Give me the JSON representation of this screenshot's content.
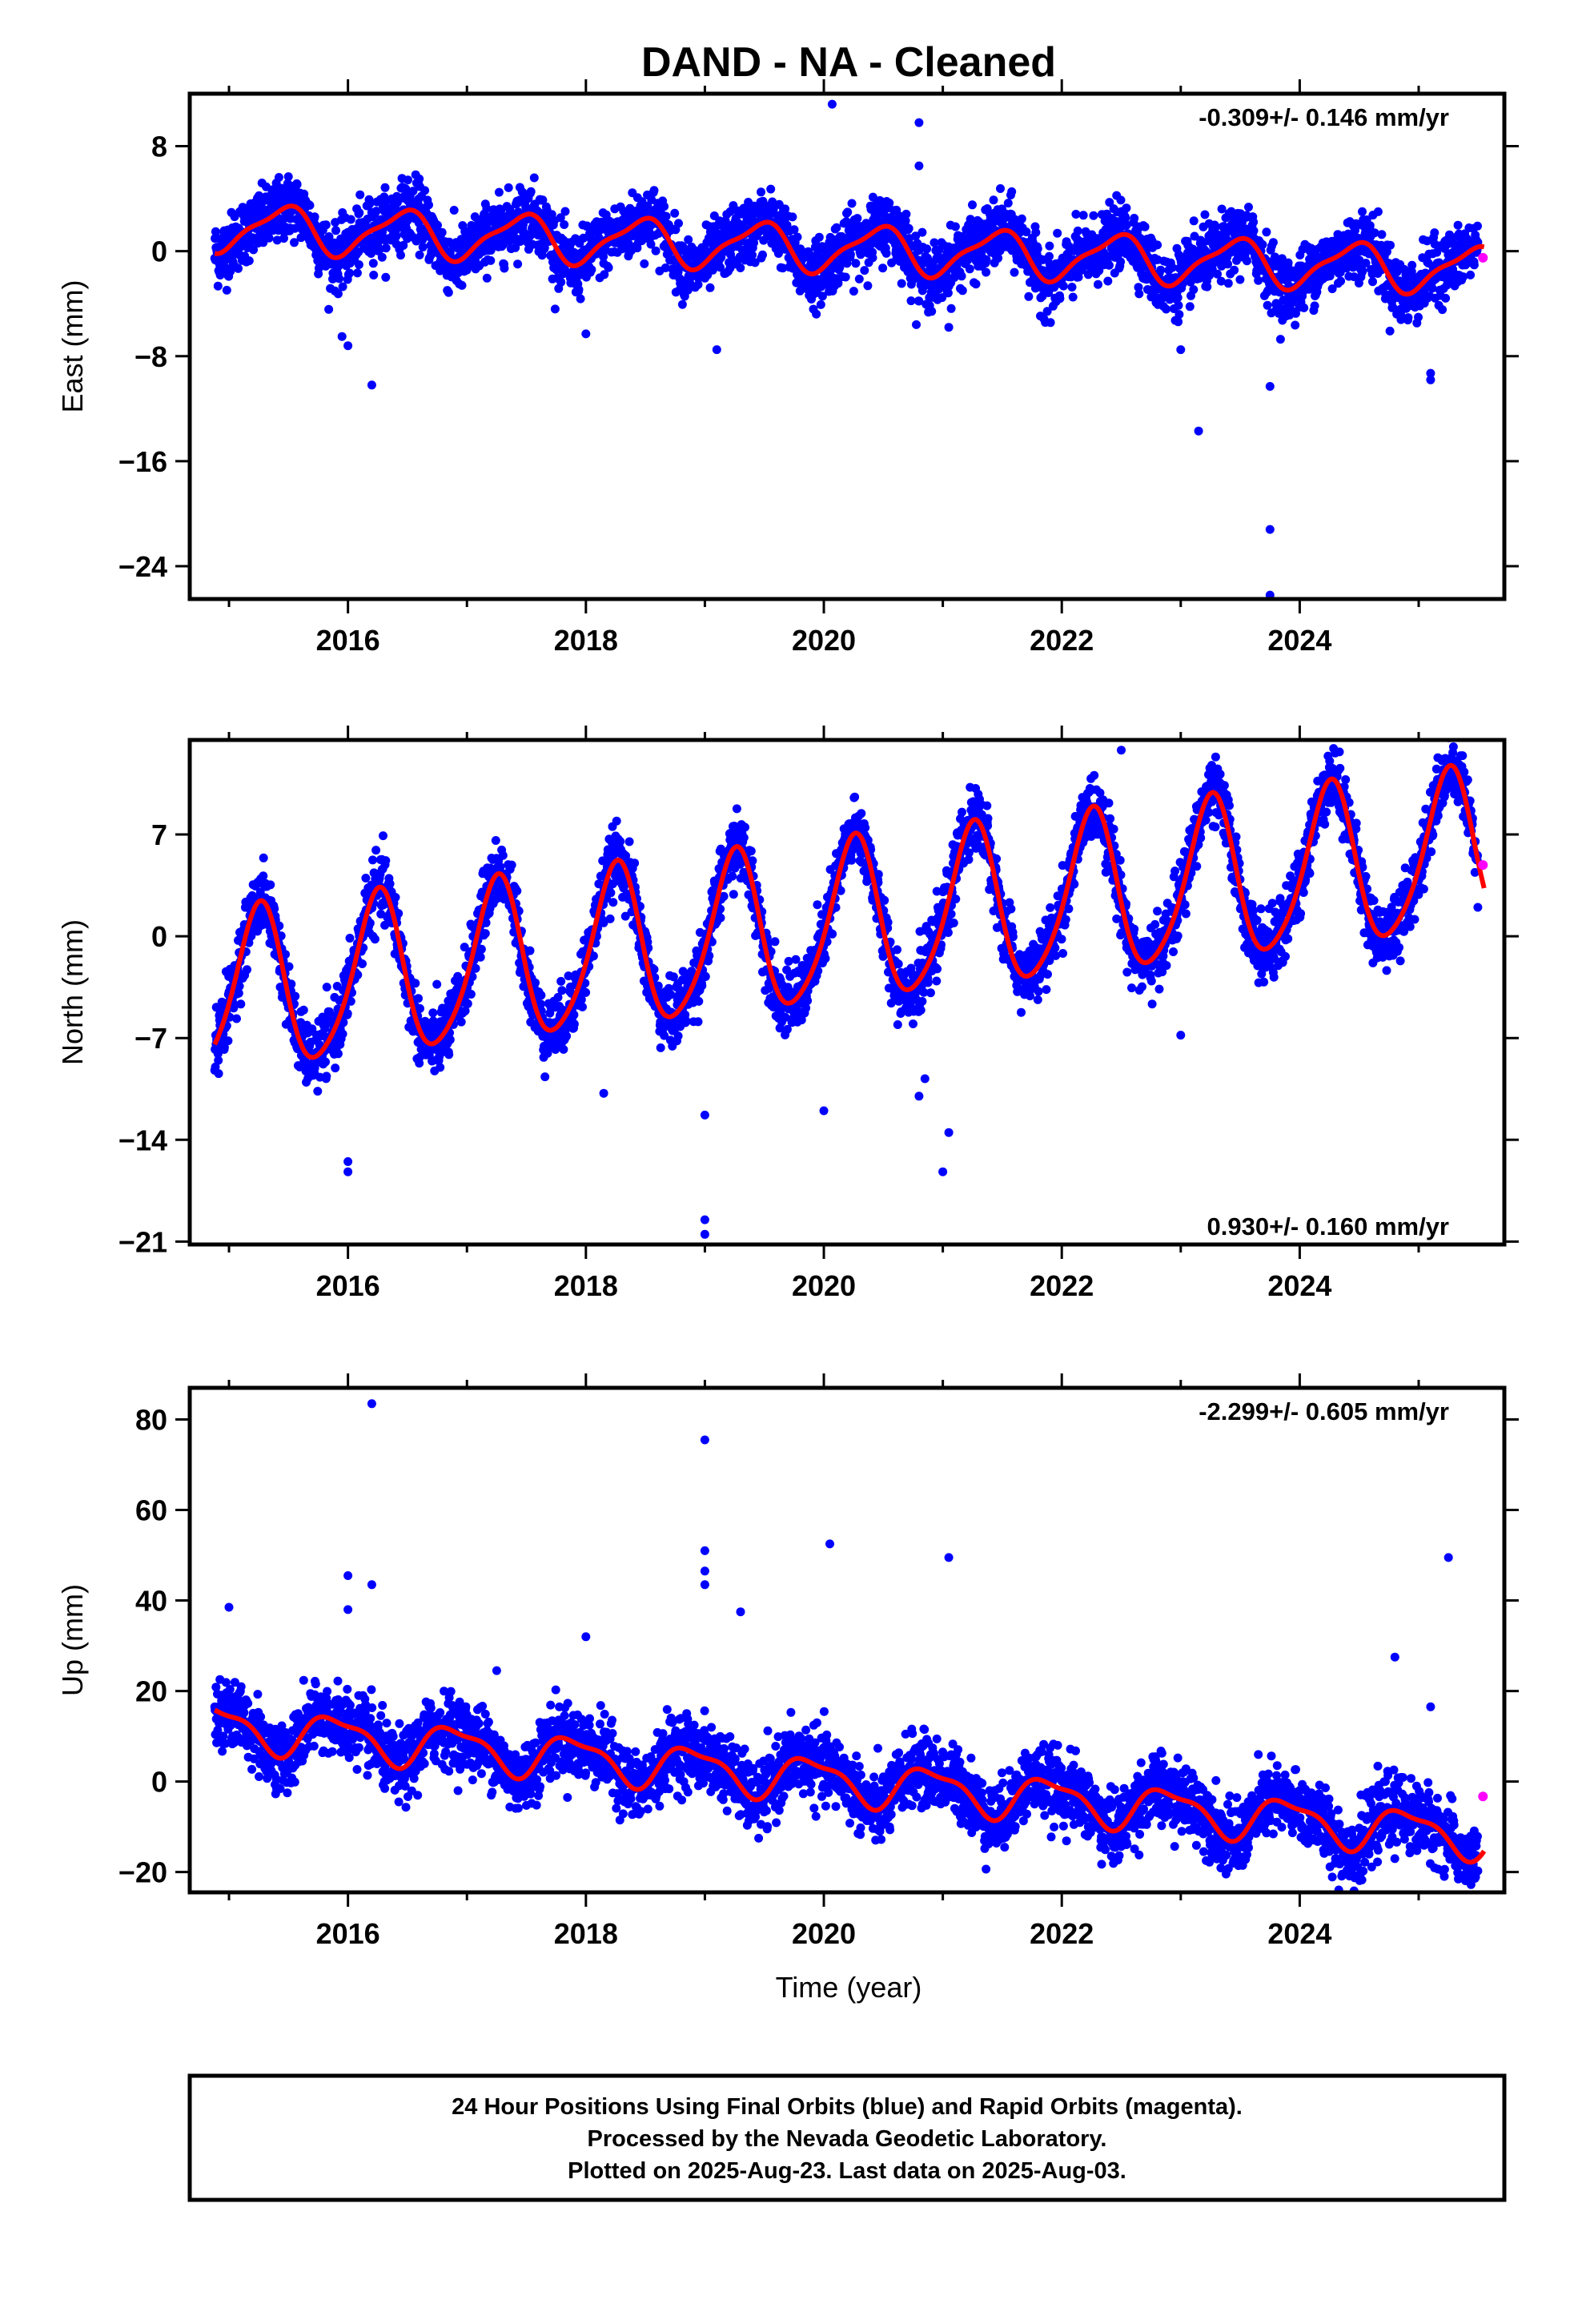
{
  "title": "DAND  - NA - Cleaned",
  "xlabel": "Time (year)",
  "footer": {
    "line1": "24 Hour Positions Using Final Orbits (blue) and Rapid Orbits (magenta).",
    "line2": "Processed by the Nevada Geodetic Laboratory.",
    "line3": "Plotted on 2025-Aug-23. Last data on 2025-Aug-03."
  },
  "colors": {
    "final_points": "#0000ff",
    "rapid_points": "#ff00ff",
    "model_fit": "#ff0000",
    "frame": "#000000"
  },
  "chart_data": [
    {
      "type": "scatter",
      "ylabel": "East (mm)",
      "rate_label": "-0.309+/- 0.146 mm/yr",
      "xlim": [
        2014.67,
        2025.72
      ],
      "ylim": [
        -26.5,
        12
      ],
      "xticks": [
        2016,
        2018,
        2020,
        2022,
        2024
      ],
      "yticks": [
        8,
        0,
        -8,
        -16,
        -24
      ],
      "ytick_labels": [
        "8",
        "0",
        "−8",
        "−16",
        "−24"
      ],
      "model": {
        "trend_mm_per_yr": -0.309,
        "offset_mm": 1.8,
        "t0": 2015.0,
        "annual_amp": 1.7,
        "annual_phase": 0.45,
        "semiannual_amp": 0.5,
        "semiannual_phase": 0.1
      },
      "noise_sd": 1.2,
      "outliers": [
        [
          2016.2,
          -10.2
        ],
        [
          2016.0,
          -7.2
        ],
        [
          2015.95,
          -6.5
        ],
        [
          2018.0,
          -6.3
        ],
        [
          2019.1,
          -7.5
        ],
        [
          2020.07,
          11.2
        ],
        [
          2020.8,
          9.8
        ],
        [
          2020.8,
          6.5
        ],
        [
          2021.05,
          -5.8
        ],
        [
          2023.0,
          -7.5
        ],
        [
          2023.15,
          -13.7
        ],
        [
          2023.75,
          -10.3
        ],
        [
          2023.75,
          -21.2
        ],
        [
          2023.75,
          -26.2
        ],
        [
          2025.1,
          -9.8
        ],
        [
          2025.1,
          -9.3
        ]
      ],
      "rapid_points": [
        [
          2025.54,
          -0.5
        ]
      ],
      "model_end": 2025.55
    },
    {
      "type": "scatter",
      "ylabel": "North (mm)",
      "rate_label": "0.930+/- 0.160 mm/yr",
      "xlim": [
        2014.67,
        2025.72
      ],
      "ylim": [
        -21.2,
        13.5
      ],
      "xticks": [
        2016,
        2018,
        2020,
        2022,
        2024
      ],
      "yticks": [
        7,
        0,
        -7,
        -14,
        -21
      ],
      "ytick_labels": [
        "7",
        "0",
        "−7",
        "−14",
        "−21"
      ],
      "model": {
        "trend_mm_per_yr": 0.93,
        "offset_mm": -4.0,
        "t0": 2015.0,
        "annual_amp": 5.5,
        "annual_phase": 0.25,
        "semiannual_amp": 0.8,
        "semiannual_phase": 0.3
      },
      "noise_sd": 1.1,
      "outliers": [
        [
          2016.0,
          -16.2
        ],
        [
          2016.0,
          -15.5
        ],
        [
          2016.15,
          4.0
        ],
        [
          2018.15,
          -10.8
        ],
        [
          2019.0,
          -20.5
        ],
        [
          2019.0,
          -19.5
        ],
        [
          2019.0,
          -12.3
        ],
        [
          2020.0,
          -12.0
        ],
        [
          2020.8,
          -11.0
        ],
        [
          2020.85,
          -9.8
        ],
        [
          2021.0,
          -16.2
        ],
        [
          2021.05,
          -13.5
        ],
        [
          2022.5,
          12.8
        ],
        [
          2023.0,
          -6.8
        ]
      ],
      "rapid_points": [
        [
          2025.54,
          4.9
        ]
      ],
      "model_end": 2025.55
    },
    {
      "type": "scatter",
      "ylabel": "Up (mm)",
      "rate_label": "-2.299+/- 0.605 mm/yr",
      "xlim": [
        2014.67,
        2025.72
      ],
      "ylim": [
        -24.5,
        87
      ],
      "xticks": [
        2016,
        2018,
        2020,
        2022,
        2024
      ],
      "yticks": [
        80,
        60,
        40,
        20,
        0,
        -20
      ],
      "ytick_labels": [
        "80",
        "60",
        "40",
        "20",
        "0",
        "−20"
      ],
      "model": {
        "trend_mm_per_yr": -2.299,
        "offset_mm": 12.0,
        "t0": 2015.0,
        "annual_amp": 4.5,
        "annual_phase": 0.9,
        "semiannual_amp": 1.5,
        "semiannual_phase": 0.2
      },
      "noise_sd": 3.8,
      "outliers": [
        [
          2016.2,
          83.5
        ],
        [
          2019.0,
          75.5
        ],
        [
          2020.05,
          52.5
        ],
        [
          2019.0,
          51.0
        ],
        [
          2021.05,
          49.5
        ],
        [
          2025.25,
          49.5
        ],
        [
          2015.0,
          38.5
        ],
        [
          2016.0,
          45.5
        ],
        [
          2016.2,
          43.5
        ],
        [
          2016.0,
          38.0
        ],
        [
          2018.0,
          32.0
        ],
        [
          2019.0,
          46.5
        ],
        [
          2019.0,
          43.5
        ],
        [
          2019.3,
          37.5
        ],
        [
          2017.25,
          24.5
        ],
        [
          2024.8,
          27.5
        ],
        [
          2025.1,
          16.5
        ]
      ],
      "rapid_points": [
        [
          2025.54,
          -3.3
        ]
      ],
      "model_end": 2025.55
    }
  ]
}
